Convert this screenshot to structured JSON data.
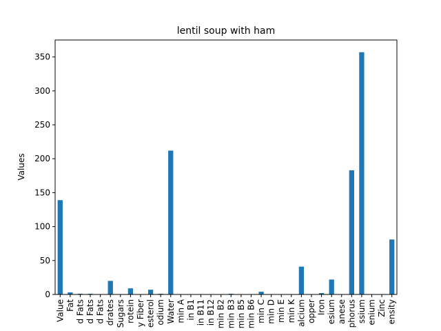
{
  "chart_data": {
    "type": "bar",
    "title": "lentil soup with ham",
    "xlabel": "",
    "ylabel": "Values",
    "ylim": [
      0,
      375
    ],
    "yticks": [
      0,
      50,
      100,
      150,
      200,
      250,
      300,
      350
    ],
    "grid": false,
    "bar_color": "#1f77b4",
    "categories": [
      "Value",
      "Fat",
      "d Fats",
      "d Fats",
      "d Fats",
      "drates",
      "Sugars",
      "rotein",
      "y Fiber",
      "esterol",
      "odium",
      "Water",
      "min A",
      "in B1",
      "in B11",
      "in B12",
      "min B2",
      "min B3",
      "min B5",
      "min B6",
      "min C",
      "min D",
      "min E",
      "min K",
      "alcium",
      "opper",
      "Iron",
      "esium",
      "anese",
      "phorus",
      "ssium",
      "enium",
      "Zinc",
      "ensity"
    ],
    "values": [
      139,
      3,
      1,
      1,
      0,
      20,
      0,
      9,
      0,
      7,
      1,
      212,
      0,
      0,
      0,
      0,
      0,
      1,
      0,
      0,
      4,
      0,
      0,
      0,
      41,
      0,
      2,
      22,
      0,
      183,
      357,
      0,
      0,
      81
    ]
  }
}
